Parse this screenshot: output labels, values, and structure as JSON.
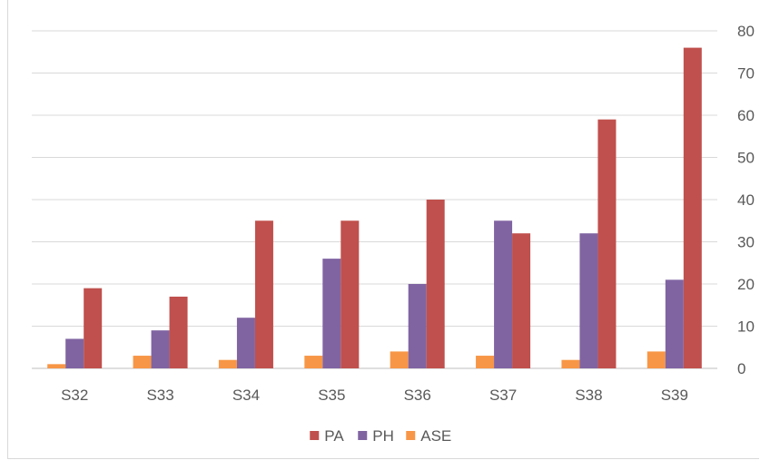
{
  "chart_data": {
    "type": "bar",
    "categories": [
      "S32",
      "S33",
      "S34",
      "S35",
      "S36",
      "S37",
      "S38",
      "S39"
    ],
    "series": [
      {
        "name": "ASE",
        "color": "#F79646",
        "values": [
          1,
          3,
          2,
          3,
          4,
          3,
          2,
          4
        ]
      },
      {
        "name": "PH",
        "color": "#8064A2",
        "values": [
          7,
          9,
          12,
          26,
          20,
          35,
          32,
          21
        ]
      },
      {
        "name": "PA",
        "color": "#C0504D",
        "values": [
          19,
          17,
          35,
          35,
          40,
          32,
          59,
          76
        ]
      }
    ],
    "legend_order": [
      "PA",
      "PH",
      "ASE"
    ],
    "ylim": [
      0,
      80
    ],
    "yticks": [
      0,
      10,
      20,
      30,
      40,
      50,
      60,
      70,
      80
    ],
    "y_axis_position": "right",
    "legend_position": "bottom",
    "grid": true,
    "title": "",
    "xlabel": "",
    "ylabel": ""
  }
}
